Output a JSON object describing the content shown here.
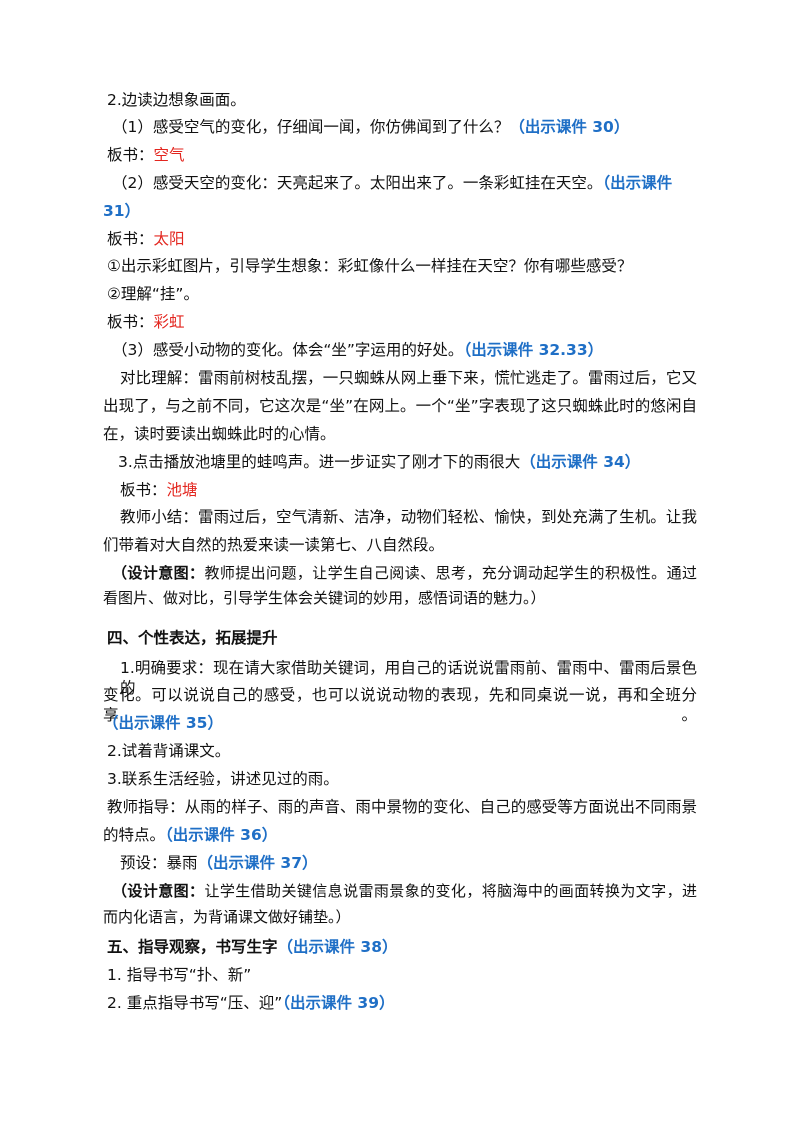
{
  "lines": [
    [
      "2.边读边想象画面。"
    ],
    [
      "（1）感受空气的变化，仔细闻一闻，你仿佛闻到了什么？",
      "（出示课件 30）"
    ],
    [
      "板书：",
      "空气"
    ],
    [
      "（2）感受天空的变化：天亮起来了。太阳出来了。一条彩虹挂在天空。",
      "（出示课件"
    ],
    [
      "31）"
    ],
    [
      "板书：",
      "太阳"
    ],
    [
      "①出示彩虹图片，引导学生想象：彩虹像什么一样挂在天空？你有哪些感受？"
    ],
    [
      "②理解“挂”。"
    ],
    [
      "板书：",
      "彩虹"
    ],
    [
      "（3）感受小动物的变化。体会“坐”字运用的好处。",
      "（出示课件 32.33）"
    ],
    [
      "对比理解：雷雨前树枝乱摆，一只蜘蛛从网上垂下来，慌忙逃走了。雷雨过后，它又"
    ],
    [
      "出现了，与之前不同，它这次是“坐”在网上。一个“坐”字表现了这只蜘蛛此时的悠闲自"
    ],
    [
      "在，读时要读出蜘蛛此时的心情。"
    ],
    [
      "3.点击播放池塘里的蛙鸣声。进一步证实了刚才下的雨很大",
      "（出示课件 34）"
    ],
    [
      "板书：",
      "池塘"
    ],
    [
      "教师小结：雷雨过后，空气清新、洁净，动物们轻松、愉快，到处充满了生机。让我"
    ],
    [
      "们带着对大自然的热爱来读一读第七、八自然段。"
    ],
    [
      "（设计意图：",
      "教师提出问题，让学生自己阅读、思考，充分调动起学生的积极性。通过"
    ],
    [
      "看图片、做对比，引导学生体会关键词的妙用，感悟词语的魅力。）"
    ],
    [
      "四、个性表达，拓展提升"
    ],
    [
      "1.明确要求：现在请大家借助关键词，用自己的话说说雷雨前、雷雨中、雷雨后景色的"
    ],
    [
      "变化。可以说说自己的感受，也可以说说动物的表现，先和同桌说一说，再和全班分享。"
    ],
    [
      "（出示课件 35）"
    ],
    [
      "2.试着背诵课文。"
    ],
    [
      "3.联系生活经验，讲述见过的雨。"
    ],
    [
      "教师指导：从雨的样子、雨的声音、雨中景物的变化、自己的感受等方面说出不同雨景"
    ],
    [
      "的特点。",
      "（出示课件 36）"
    ],
    [
      "预设：暴雨",
      "（出示课件 37）"
    ],
    [
      "（设计意图：",
      "让学生借助关键信息说雷雨景象的变化，将脑海中的画面转换为文字，进"
    ],
    [
      "而内化语言，为背诵课文做好铺垫。）"
    ],
    [
      "五、指导观察，书写生字",
      "（出示课件 38）"
    ],
    [
      "1. 指导书写“扑、新”"
    ],
    [
      "2. 重点指导书写“压、迎”",
      "（出示课件 39）"
    ]
  ]
}
